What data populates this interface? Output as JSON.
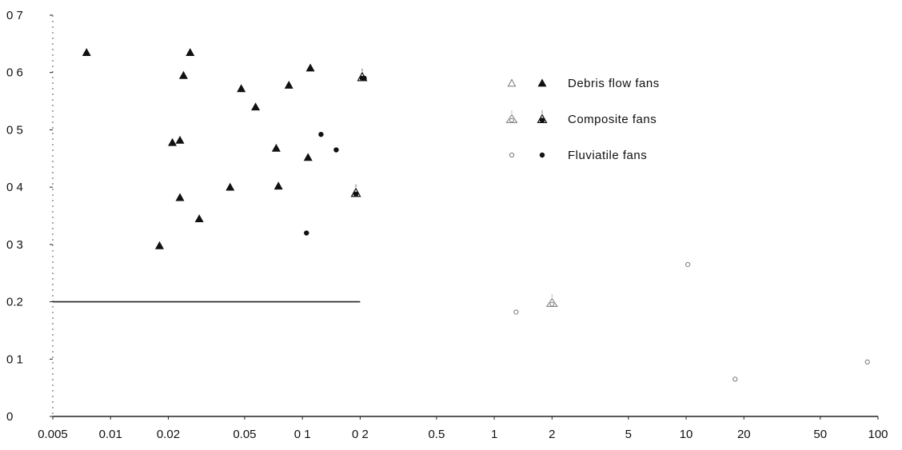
{
  "chart_data": {
    "type": "scatter",
    "title": "",
    "xlabel": "",
    "ylabel": "",
    "xscale": "log",
    "xlim": [
      0.005,
      100
    ],
    "ylim": [
      0,
      0.7
    ],
    "grid": false,
    "legend_position": "top-right",
    "x_ticks": [
      {
        "value": 0.005,
        "label": "0.005"
      },
      {
        "value": 0.01,
        "label": "0.01"
      },
      {
        "value": 0.02,
        "label": "0.02"
      },
      {
        "value": 0.05,
        "label": "0.05"
      },
      {
        "value": 0.1,
        "label": "0 1"
      },
      {
        "value": 0.2,
        "label": "0 2"
      },
      {
        "value": 0.5,
        "label": "0.5"
      },
      {
        "value": 1,
        "label": "1"
      },
      {
        "value": 2,
        "label": "2"
      },
      {
        "value": 5,
        "label": "5"
      },
      {
        "value": 10,
        "label": "10"
      },
      {
        "value": 20,
        "label": "20"
      },
      {
        "value": 50,
        "label": "50"
      },
      {
        "value": 100,
        "label": "100"
      }
    ],
    "y_ticks": [
      {
        "value": 0,
        "label": "0"
      },
      {
        "value": 0.1,
        "label": "0 1"
      },
      {
        "value": 0.2,
        "label": "0.2"
      },
      {
        "value": 0.3,
        "label": "0 3"
      },
      {
        "value": 0.4,
        "label": "0 4"
      },
      {
        "value": 0.5,
        "label": "0 5"
      },
      {
        "value": 0.6,
        "label": "0 6"
      },
      {
        "value": 0.7,
        "label": "0 7"
      }
    ],
    "reference_lines": [
      {
        "y": 0.2,
        "x_from": 0.005,
        "x_to": 0.2
      }
    ],
    "series": [
      {
        "name": "Debris flow fans",
        "marker": "triangle",
        "color": "#111111",
        "points": [
          {
            "x": 0.0075,
            "y": 0.635
          },
          {
            "x": 0.018,
            "y": 0.298
          },
          {
            "x": 0.021,
            "y": 0.478
          },
          {
            "x": 0.023,
            "y": 0.482
          },
          {
            "x": 0.023,
            "y": 0.382
          },
          {
            "x": 0.024,
            "y": 0.595
          },
          {
            "x": 0.026,
            "y": 0.635
          },
          {
            "x": 0.029,
            "y": 0.345
          },
          {
            "x": 0.042,
            "y": 0.4
          },
          {
            "x": 0.048,
            "y": 0.572
          },
          {
            "x": 0.057,
            "y": 0.54
          },
          {
            "x": 0.073,
            "y": 0.468
          },
          {
            "x": 0.075,
            "y": 0.402
          },
          {
            "x": 0.085,
            "y": 0.578
          },
          {
            "x": 0.107,
            "y": 0.452
          },
          {
            "x": 0.11,
            "y": 0.608
          }
        ]
      },
      {
        "name": "Composite fans",
        "marker": "triangle-dot",
        "color": "#111111",
        "points": [
          {
            "x": 0.19,
            "y": 0.39
          },
          {
            "x": 0.205,
            "y": 0.592
          }
        ]
      },
      {
        "name": "Fluviatile fans",
        "marker": "circle",
        "color": "#111111",
        "points": [
          {
            "x": 0.105,
            "y": 0.32
          },
          {
            "x": 0.125,
            "y": 0.492
          },
          {
            "x": 0.15,
            "y": 0.465
          },
          {
            "x": 0.21,
            "y": 0.59
          }
        ]
      },
      {
        "name": "",
        "marker": "open-circle",
        "color": "#777777",
        "points": [
          {
            "x": 1.3,
            "y": 0.182
          },
          {
            "x": 10.2,
            "y": 0.265
          },
          {
            "x": 18,
            "y": 0.065
          },
          {
            "x": 88,
            "y": 0.095
          }
        ]
      },
      {
        "name": "",
        "marker": "open-triangle-dot",
        "color": "#777777",
        "points": [
          {
            "x": 2.0,
            "y": 0.198
          }
        ]
      }
    ],
    "legend": [
      {
        "label": "Debris flow fans",
        "marker": "triangle",
        "open_marker": "open-triangle"
      },
      {
        "label": "Composite fans",
        "marker": "triangle-dot",
        "open_marker": "open-triangle-dot"
      },
      {
        "label": "Fluviatile fans",
        "marker": "circle",
        "open_marker": "open-circle"
      }
    ]
  }
}
